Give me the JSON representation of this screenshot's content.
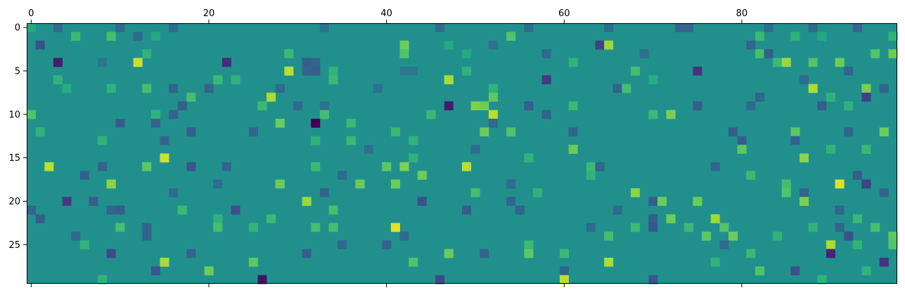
{
  "chart_data": {
    "type": "heatmap",
    "colormap": "viridis",
    "n_cols": 98,
    "n_rows": 30,
    "x_axis": {
      "position": "top",
      "ticks": [
        0,
        20,
        40,
        60,
        80
      ],
      "tick_labels": [
        "0",
        "20",
        "40",
        "60",
        "80"
      ]
    },
    "y_axis": {
      "position": "left",
      "ticks": [
        0,
        5,
        10,
        15,
        20,
        25
      ],
      "tick_labels": [
        "0",
        "5",
        "10",
        "15",
        "20",
        "25"
      ]
    },
    "grid": false,
    "value_range": [
      -1,
      1
    ],
    "background_value": 0,
    "cells": [
      [
        0,
        0,
        0.2
      ],
      [
        3,
        0,
        -0.3
      ],
      [
        10,
        0,
        -0.3
      ],
      [
        16,
        0,
        -0.3
      ],
      [
        33,
        0,
        -0.25
      ],
      [
        46,
        0,
        -0.3
      ],
      [
        56,
        0,
        -0.3
      ],
      [
        65,
        0,
        -0.3
      ],
      [
        73,
        0,
        -0.35
      ],
      [
        74,
        0,
        -0.35
      ],
      [
        83,
        0,
        -0.3
      ],
      [
        88,
        0,
        -0.3
      ],
      [
        93,
        0,
        -0.35
      ],
      [
        5,
        1,
        0.35
      ],
      [
        9,
        1,
        0.4
      ],
      [
        12,
        1,
        -0.3
      ],
      [
        14,
        1,
        0.2
      ],
      [
        54,
        1,
        0.45
      ],
      [
        82,
        1,
        0.35
      ],
      [
        86,
        1,
        0.3
      ],
      [
        89,
        1,
        0.2
      ],
      [
        97,
        1,
        0.3
      ],
      [
        1,
        2,
        -0.5
      ],
      [
        42,
        2,
        0.55
      ],
      [
        47,
        2,
        0.2
      ],
      [
        52,
        2,
        -0.25
      ],
      [
        64,
        2,
        -0.6
      ],
      [
        65,
        2,
        0.7
      ],
      [
        81,
        2,
        -0.35
      ],
      [
        13,
        3,
        0.3
      ],
      [
        29,
        3,
        0.35
      ],
      [
        42,
        3,
        0.45
      ],
      [
        49,
        3,
        0.2
      ],
      [
        58,
        3,
        -0.3
      ],
      [
        69,
        3,
        -0.25
      ],
      [
        82,
        3,
        0.4
      ],
      [
        83,
        3,
        -0.4
      ],
      [
        95,
        3,
        0.45
      ],
      [
        97,
        3,
        0.55
      ],
      [
        3,
        4,
        -0.85
      ],
      [
        8,
        4,
        -0.2
      ],
      [
        12,
        4,
        0.85
      ],
      [
        22,
        4,
        -0.75
      ],
      [
        31,
        4,
        -0.4
      ],
      [
        32,
        4,
        -0.35
      ],
      [
        61,
        4,
        0.3
      ],
      [
        84,
        4,
        0.35
      ],
      [
        85,
        4,
        0.7
      ],
      [
        88,
        4,
        0.45
      ],
      [
        91,
        4,
        0.55
      ],
      [
        29,
        5,
        0.8
      ],
      [
        31,
        5,
        -0.35
      ],
      [
        32,
        5,
        -0.4
      ],
      [
        34,
        5,
        0.3
      ],
      [
        42,
        5,
        -0.2
      ],
      [
        43,
        5,
        -0.2
      ],
      [
        49,
        5,
        0.3
      ],
      [
        68,
        5,
        0.4
      ],
      [
        75,
        5,
        -0.7
      ],
      [
        92,
        5,
        -0.35
      ],
      [
        3,
        6,
        0.3
      ],
      [
        21,
        6,
        0.35
      ],
      [
        23,
        6,
        0.3
      ],
      [
        34,
        6,
        0.35
      ],
      [
        47,
        6,
        0.75
      ],
      [
        58,
        6,
        -0.65
      ],
      [
        70,
        6,
        0.25
      ],
      [
        87,
        6,
        -0.3
      ],
      [
        4,
        7,
        0.25
      ],
      [
        9,
        7,
        0.3
      ],
      [
        13,
        7,
        0.4
      ],
      [
        16,
        7,
        -0.35
      ],
      [
        20,
        7,
        -0.35
      ],
      [
        28,
        7,
        -0.3
      ],
      [
        39,
        7,
        -0.25
      ],
      [
        52,
        7,
        0.3
      ],
      [
        66,
        7,
        -0.35
      ],
      [
        67,
        7,
        0.4
      ],
      [
        88,
        7,
        0.75
      ],
      [
        94,
        7,
        0.6
      ],
      [
        96,
        7,
        -0.35
      ],
      [
        18,
        8,
        0.4
      ],
      [
        27,
        8,
        0.75
      ],
      [
        52,
        8,
        0.5
      ],
      [
        82,
        8,
        -0.35
      ],
      [
        90,
        8,
        0.3
      ],
      [
        94,
        8,
        -0.6
      ],
      [
        17,
        9,
        -0.4
      ],
      [
        26,
        9,
        0.35
      ],
      [
        30,
        9,
        -0.3
      ],
      [
        33,
        9,
        -0.25
      ],
      [
        47,
        9,
        -0.85
      ],
      [
        50,
        9,
        0.6
      ],
      [
        51,
        9,
        0.55
      ],
      [
        56,
        9,
        -0.4
      ],
      [
        61,
        9,
        0.35
      ],
      [
        75,
        9,
        -0.4
      ],
      [
        81,
        9,
        -0.3
      ],
      [
        89,
        9,
        -0.4
      ],
      [
        92,
        9,
        0.3
      ],
      [
        0,
        10,
        0.45
      ],
      [
        14,
        10,
        0.3
      ],
      [
        16,
        10,
        -0.35
      ],
      [
        33,
        10,
        0.4
      ],
      [
        45,
        10,
        0.35
      ],
      [
        52,
        10,
        0.8
      ],
      [
        58,
        10,
        -0.35
      ],
      [
        70,
        10,
        0.35
      ],
      [
        72,
        10,
        0.6
      ],
      [
        10,
        11,
        -0.4
      ],
      [
        14,
        11,
        -0.35
      ],
      [
        28,
        11,
        0.55
      ],
      [
        32,
        11,
        -1.0
      ],
      [
        36,
        11,
        0.35
      ],
      [
        52,
        11,
        -0.3
      ],
      [
        1,
        12,
        0.3
      ],
      [
        18,
        12,
        -0.4
      ],
      [
        25,
        12,
        -0.35
      ],
      [
        41,
        12,
        0.35
      ],
      [
        51,
        12,
        0.55
      ],
      [
        54,
        12,
        0.45
      ],
      [
        61,
        12,
        -0.35
      ],
      [
        79,
        12,
        -0.4
      ],
      [
        86,
        12,
        0.5
      ],
      [
        92,
        12,
        -0.35
      ],
      [
        96,
        12,
        0.55
      ],
      [
        8,
        13,
        0.3
      ],
      [
        15,
        13,
        -0.35
      ],
      [
        32,
        13,
        0.3
      ],
      [
        36,
        13,
        0.35
      ],
      [
        43,
        13,
        0.3
      ],
      [
        80,
        13,
        -0.4
      ],
      [
        86,
        13,
        -0.35
      ],
      [
        38,
        14,
        -0.25
      ],
      [
        50,
        14,
        -0.3
      ],
      [
        61,
        14,
        0.55
      ],
      [
        80,
        14,
        0.5
      ],
      [
        90,
        14,
        0.3
      ],
      [
        94,
        14,
        0.35
      ],
      [
        15,
        15,
        0.85
      ],
      [
        43,
        15,
        0.3
      ],
      [
        56,
        15,
        0.3
      ],
      [
        87,
        15,
        0.65
      ],
      [
        2,
        16,
        0.8
      ],
      [
        8,
        16,
        -0.35
      ],
      [
        13,
        16,
        0.5
      ],
      [
        18,
        16,
        -0.45
      ],
      [
        22,
        16,
        -0.35
      ],
      [
        32,
        16,
        0.35
      ],
      [
        40,
        16,
        0.5
      ],
      [
        42,
        16,
        0.6
      ],
      [
        49,
        16,
        0.8
      ],
      [
        63,
        16,
        0.35
      ],
      [
        64,
        16,
        -0.35
      ],
      [
        77,
        16,
        -0.35
      ],
      [
        6,
        17,
        -0.4
      ],
      [
        35,
        17,
        -0.3
      ],
      [
        44,
        17,
        0.55
      ],
      [
        63,
        17,
        0.3
      ],
      [
        81,
        17,
        0.35
      ],
      [
        93,
        17,
        -0.4
      ],
      [
        9,
        18,
        0.65
      ],
      [
        21,
        18,
        -0.3
      ],
      [
        28,
        18,
        0.55
      ],
      [
        37,
        18,
        0.55
      ],
      [
        41,
        18,
        0.55
      ],
      [
        54,
        18,
        -0.3
      ],
      [
        85,
        18,
        0.4
      ],
      [
        91,
        18,
        0.9
      ],
      [
        94,
        18,
        -0.6
      ],
      [
        16,
        19,
        -0.3
      ],
      [
        33,
        19,
        -0.35
      ],
      [
        50,
        19,
        0.4
      ],
      [
        57,
        19,
        0.3
      ],
      [
        68,
        19,
        0.65
      ],
      [
        85,
        19,
        0.45
      ],
      [
        87,
        19,
        -0.35
      ],
      [
        96,
        19,
        -0.35
      ],
      [
        4,
        20,
        -0.65
      ],
      [
        7,
        20,
        -0.4
      ],
      [
        31,
        20,
        0.7
      ],
      [
        44,
        20,
        -0.5
      ],
      [
        54,
        20,
        -0.35
      ],
      [
        70,
        20,
        -0.4
      ],
      [
        71,
        20,
        0.55
      ],
      [
        75,
        20,
        0.55
      ],
      [
        87,
        20,
        0.6
      ],
      [
        0,
        21,
        -0.35
      ],
      [
        9,
        21,
        -0.35
      ],
      [
        10,
        21,
        -0.4
      ],
      [
        17,
        21,
        0.35
      ],
      [
        23,
        21,
        -0.5
      ],
      [
        34,
        21,
        0.4
      ],
      [
        49,
        21,
        -0.4
      ],
      [
        55,
        21,
        -0.35
      ],
      [
        66,
        21,
        -0.3
      ],
      [
        91,
        21,
        -0.35
      ],
      [
        1,
        22,
        -0.4
      ],
      [
        21,
        22,
        0.3
      ],
      [
        27,
        22,
        0.35
      ],
      [
        70,
        22,
        -0.4
      ],
      [
        72,
        22,
        0.55
      ],
      [
        77,
        22,
        0.7
      ],
      [
        93,
        22,
        0.35
      ],
      [
        10,
        23,
        0.4
      ],
      [
        13,
        23,
        -0.35
      ],
      [
        21,
        23,
        0.4
      ],
      [
        25,
        23,
        0.3
      ],
      [
        32,
        23,
        0.4
      ],
      [
        34,
        23,
        0.4
      ],
      [
        41,
        23,
        0.9
      ],
      [
        63,
        23,
        -0.3
      ],
      [
        68,
        23,
        0.35
      ],
      [
        70,
        23,
        -0.45
      ],
      [
        74,
        23,
        0.35
      ],
      [
        78,
        23,
        0.45
      ],
      [
        88,
        23,
        0.3
      ],
      [
        91,
        23,
        -0.35
      ],
      [
        95,
        23,
        0.4
      ],
      [
        5,
        24,
        -0.3
      ],
      [
        13,
        24,
        -0.35
      ],
      [
        42,
        24,
        -0.3
      ],
      [
        65,
        24,
        0.4
      ],
      [
        76,
        24,
        0.5
      ],
      [
        79,
        24,
        0.55
      ],
      [
        84,
        24,
        0.3
      ],
      [
        92,
        24,
        -0.5
      ],
      [
        97,
        24,
        0.5
      ],
      [
        6,
        25,
        0.3
      ],
      [
        35,
        25,
        -0.3
      ],
      [
        40,
        25,
        -0.35
      ],
      [
        56,
        25,
        0.35
      ],
      [
        78,
        25,
        -0.3
      ],
      [
        90,
        25,
        0.75
      ],
      [
        93,
        25,
        0.3
      ],
      [
        97,
        25,
        0.45
      ],
      [
        9,
        26,
        -0.55
      ],
      [
        18,
        26,
        -0.35
      ],
      [
        31,
        26,
        -0.4
      ],
      [
        47,
        26,
        0.55
      ],
      [
        51,
        26,
        -0.35
      ],
      [
        56,
        26,
        0.5
      ],
      [
        60,
        26,
        0.35
      ],
      [
        81,
        26,
        0.35
      ],
      [
        90,
        26,
        -0.8
      ],
      [
        15,
        27,
        0.75
      ],
      [
        25,
        27,
        0.5
      ],
      [
        43,
        27,
        0.45
      ],
      [
        65,
        27,
        0.75
      ],
      [
        77,
        27,
        0.3
      ],
      [
        96,
        27,
        -0.7
      ],
      [
        14,
        28,
        -0.45
      ],
      [
        20,
        28,
        0.55
      ],
      [
        60,
        28,
        -0.35
      ],
      [
        82,
        28,
        0.45
      ],
      [
        86,
        28,
        -0.5
      ],
      [
        94,
        28,
        0.3
      ],
      [
        8,
        29,
        0.3
      ],
      [
        26,
        29,
        -0.9
      ],
      [
        46,
        29,
        -0.55
      ],
      [
        60,
        29,
        0.8
      ],
      [
        70,
        29,
        -0.45
      ],
      [
        89,
        29,
        0.3
      ]
    ]
  }
}
